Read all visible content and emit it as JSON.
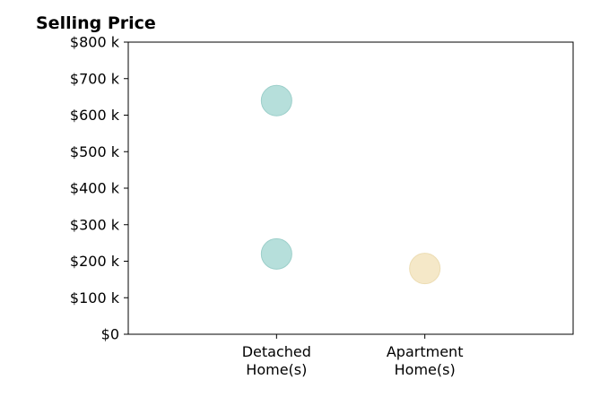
{
  "chart_data": {
    "type": "scatter",
    "title": "Selling Price",
    "xlabel": "",
    "ylabel": "",
    "categories": [
      "Detached\nHome(s)",
      "Apartment\nHome(s)"
    ],
    "xlim": [
      -1,
      2
    ],
    "ylim": [
      0,
      800000
    ],
    "y_ticks": [
      {
        "value": 0,
        "label": "$0"
      },
      {
        "value": 100000,
        "label": "$100 k"
      },
      {
        "value": 200000,
        "label": "$200 k"
      },
      {
        "value": 300000,
        "label": "$300 k"
      },
      {
        "value": 400000,
        "label": "$400 k"
      },
      {
        "value": 500000,
        "label": "$500 k"
      },
      {
        "value": 600000,
        "label": "$600 k"
      },
      {
        "value": 700000,
        "label": "$700 k"
      },
      {
        "value": 800000,
        "label": "$800 k"
      }
    ],
    "grid": false,
    "points": [
      {
        "category": "Detached\nHome(s)",
        "y": 640000,
        "color": "#b6dfdb",
        "stroke": "#9ccfca"
      },
      {
        "category": "Detached\nHome(s)",
        "y": 220000,
        "color": "#b6dfdb",
        "stroke": "#9ccfca"
      },
      {
        "category": "Apartment\nHome(s)",
        "y": 180000,
        "color": "#f5e8c8",
        "stroke": "#ecdcb2"
      }
    ]
  }
}
